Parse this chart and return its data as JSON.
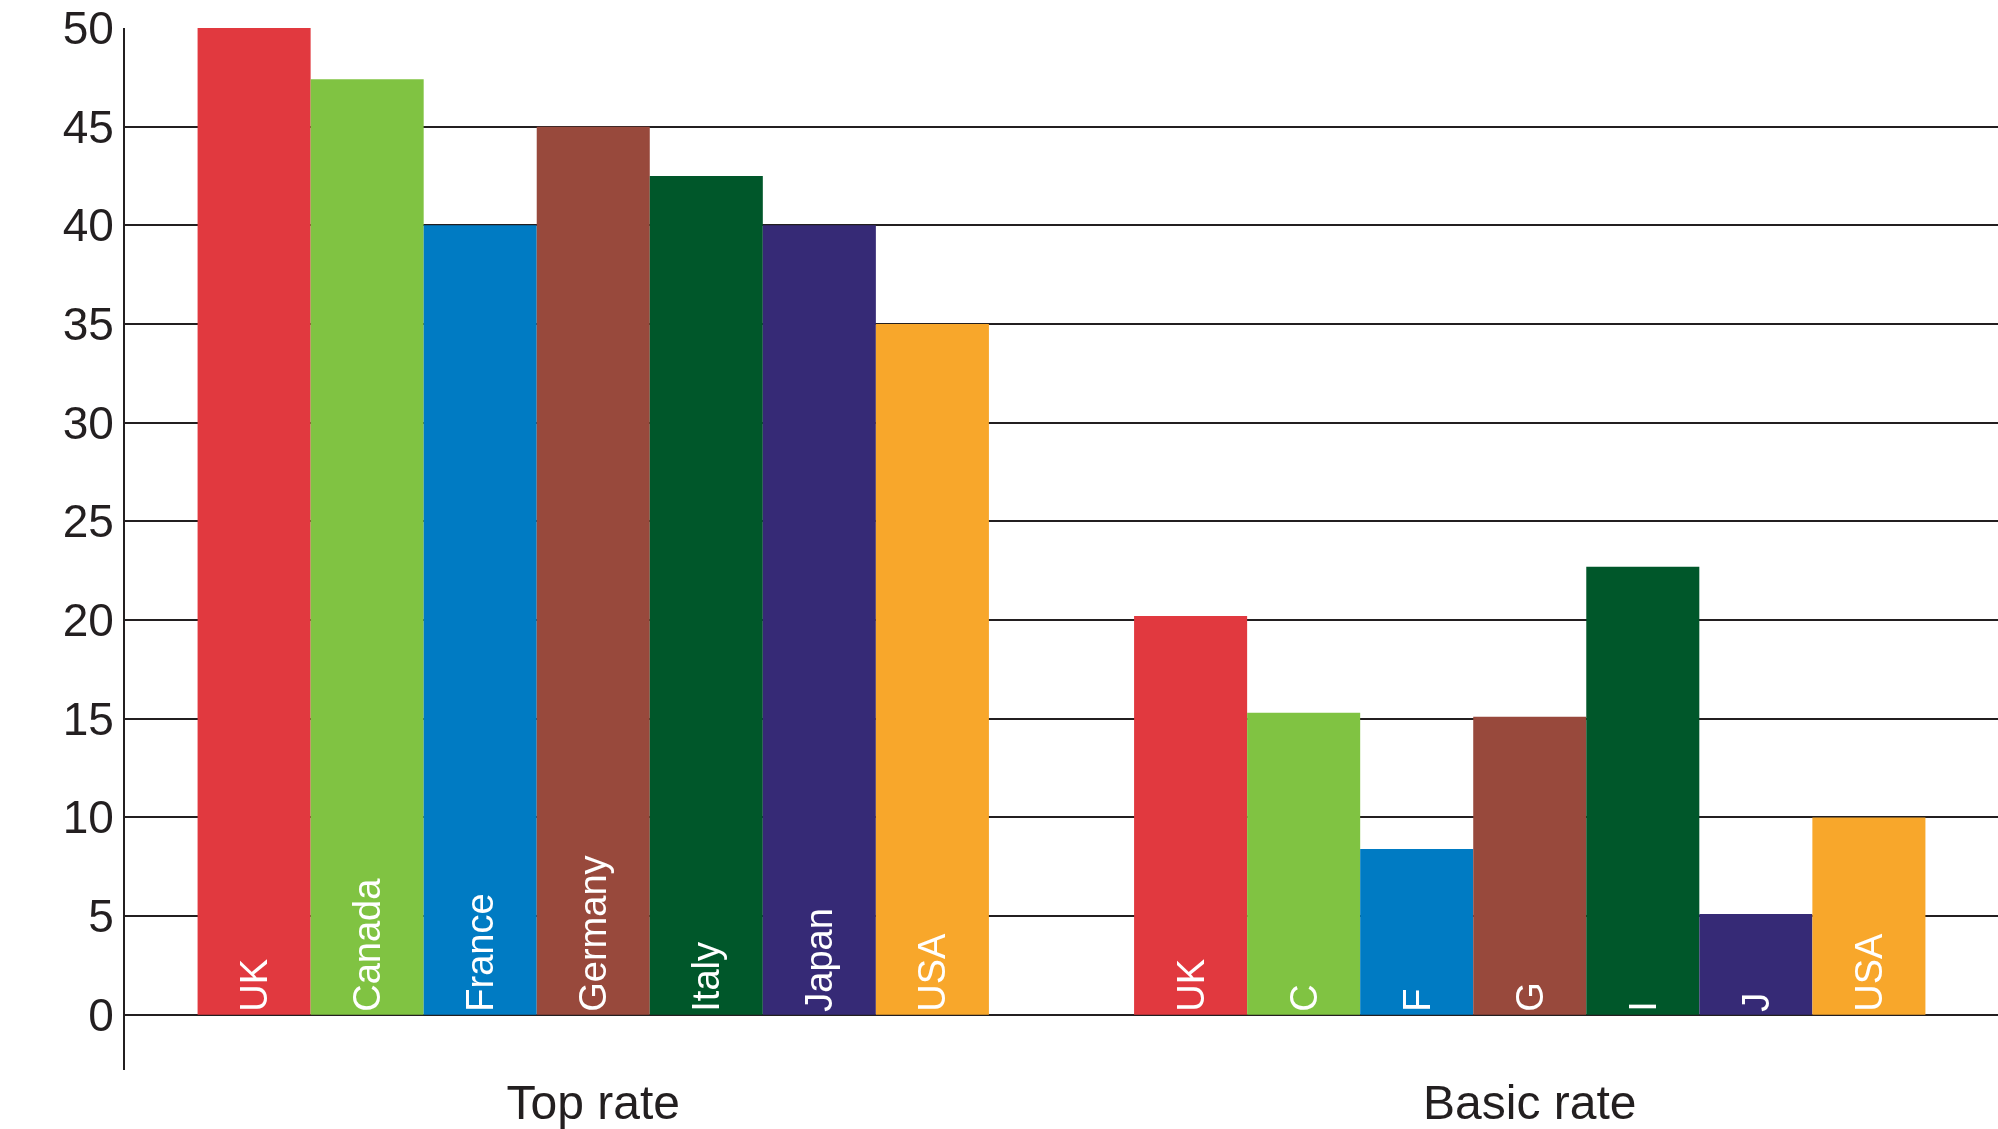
{
  "chart_data": {
    "type": "bar",
    "categories": [
      "Top rate",
      "Basic rate"
    ],
    "series": [
      {
        "color": "#e1393f",
        "values": [
          50,
          20.2
        ],
        "value_labels": [
          "UK",
          "UK"
        ]
      },
      {
        "color": "#80c342",
        "values": [
          47.4,
          15.3
        ],
        "value_labels": [
          "Canada",
          "C"
        ]
      },
      {
        "color": "#007bc3",
        "values": [
          40,
          8.4
        ],
        "value_labels": [
          "France",
          "F"
        ]
      },
      {
        "color": "#98493c",
        "values": [
          45,
          15.1
        ],
        "value_labels": [
          "Germany",
          "G"
        ]
      },
      {
        "color": "#00572a",
        "values": [
          42.5,
          22.7
        ],
        "value_labels": [
          "Italy",
          "I"
        ]
      },
      {
        "color": "#362a76",
        "values": [
          40,
          5.1
        ],
        "value_labels": [
          "Japan",
          "J"
        ]
      },
      {
        "color": "#f8a72b",
        "values": [
          35,
          10
        ],
        "value_labels": [
          "USA",
          "USA"
        ]
      }
    ],
    "ylim": [
      -2.8,
      50
    ],
    "yticks": [
      0,
      5,
      10,
      15,
      20,
      25,
      30,
      35,
      40,
      45,
      50
    ],
    "grid": "y",
    "legend": false
  }
}
